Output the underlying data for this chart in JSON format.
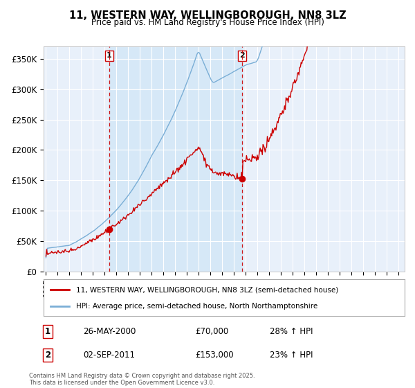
{
  "title": "11, WESTERN WAY, WELLINGBOROUGH, NN8 3LZ",
  "subtitle": "Price paid vs. HM Land Registry's House Price Index (HPI)",
  "ylabel_ticks": [
    "£0",
    "£50K",
    "£100K",
    "£150K",
    "£200K",
    "£250K",
    "£300K",
    "£350K"
  ],
  "ytick_values": [
    0,
    50000,
    100000,
    150000,
    200000,
    250000,
    300000,
    350000
  ],
  "ylim": [
    0,
    370000
  ],
  "xlim_start": 1994.8,
  "xlim_end": 2025.5,
  "sale1_x": 2000.38,
  "sale1_y": 70000,
  "sale1_label": "1",
  "sale1_date_str": "26-MAY-2000",
  "sale1_pct": "28% ↑ HPI",
  "sale2_x": 2011.67,
  "sale2_y": 153000,
  "sale2_label": "2",
  "sale2_date_str": "02-SEP-2011",
  "sale2_pct": "23% ↑ HPI",
  "line_color_property": "#cc0000",
  "line_color_hpi": "#7aaed6",
  "shade_color": "#d6e8f7",
  "legend_label_property": "11, WESTERN WAY, WELLINGBOROUGH, NN8 3LZ (semi-detached house)",
  "legend_label_hpi": "HPI: Average price, semi-detached house, North Northamptonshire",
  "footer": "Contains HM Land Registry data © Crown copyright and database right 2025.\nThis data is licensed under the Open Government Licence v3.0.",
  "background_color": "#ffffff",
  "plot_bg_color": "#e8f0fa",
  "grid_color": "#ffffff"
}
